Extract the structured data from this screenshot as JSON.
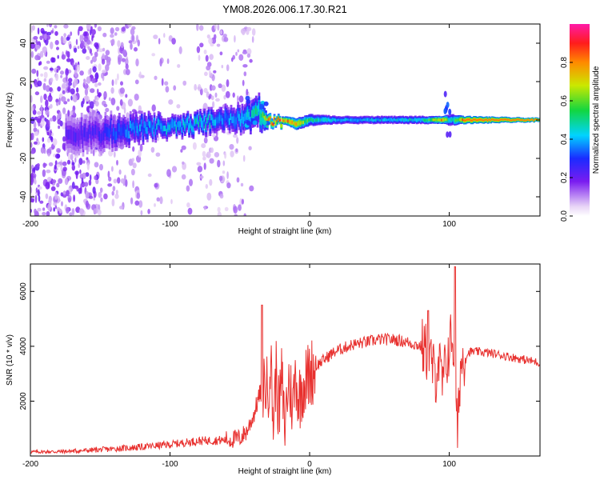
{
  "title": "YM08.2026.006.17.30.R21",
  "chart_data": [
    {
      "type": "heatmap",
      "name": "spectrogram",
      "xlabel": "Height of straight line (km)",
      "ylabel": "Frequency (Hz)",
      "xlim": [
        -200,
        165
      ],
      "ylim": [
        -50,
        50
      ],
      "xticks": [
        -200,
        -100,
        0,
        100
      ],
      "xtick_labels": [
        "-200",
        "-100",
        "0",
        "100"
      ],
      "yticks": [
        -40,
        -20,
        0,
        20,
        40
      ],
      "ytick_labels": [
        "-40",
        "-20",
        "0",
        "20",
        "40"
      ],
      "colorbar": {
        "label": "Normalized spectral amplitude",
        "range": [
          0,
          1
        ],
        "ticks": [
          0.0,
          0.2,
          0.4,
          0.6,
          0.8
        ],
        "tick_labels": [
          "0.0",
          "0.2",
          "0.4",
          "0.6",
          "0.8"
        ]
      },
      "ridge": {
        "x": [
          -200,
          -150,
          -130,
          -100,
          -80,
          -60,
          -45,
          -35,
          -30,
          -20,
          -10,
          0,
          20,
          50,
          80,
          95,
          100,
          110,
          165
        ],
        "center_hz": [
          -8,
          -7,
          -5,
          -3,
          -2,
          0,
          2,
          4,
          0,
          0,
          -2,
          0,
          0,
          0,
          0,
          0,
          0,
          0,
          0
        ],
        "halfwidth_hz": [
          10,
          9,
          7,
          5,
          5,
          6,
          7,
          8,
          3,
          2,
          3,
          3,
          2,
          2,
          2,
          2,
          3,
          2,
          1
        ],
        "peak_amplitude": [
          0.25,
          0.3,
          0.45,
          0.5,
          0.55,
          0.45,
          0.5,
          0.6,
          0.95,
          0.95,
          0.9,
          0.6,
          0.5,
          0.5,
          0.55,
          0.95,
          0.5,
          1.0,
          1.0
        ]
      }
    },
    {
      "type": "line",
      "name": "snr",
      "xlabel": "Height of straight line (km)",
      "ylabel": "SNR (10 * v/v)",
      "xlim": [
        -200,
        165
      ],
      "ylim": [
        0,
        7000
      ],
      "xticks": [
        -200,
        -100,
        0,
        100
      ],
      "xtick_labels": [
        "-200",
        "-100",
        "0",
        "100"
      ],
      "yticks": [
        2000,
        4000,
        6000
      ],
      "ytick_labels": [
        "2000",
        "4000",
        "6000"
      ],
      "color": "#e8312f",
      "series": [
        {
          "name": "SNR",
          "x": [
            -200,
            -180,
            -160,
            -140,
            -120,
            -100,
            -80,
            -60,
            -50,
            -45,
            -40,
            -35,
            -32,
            -30,
            -28,
            -26,
            -24,
            -22,
            -20,
            -18,
            -15,
            -12,
            -10,
            -8,
            -5,
            -2,
            0,
            5,
            10,
            15,
            20,
            25,
            30,
            40,
            50,
            60,
            70,
            80,
            85,
            88,
            90,
            92,
            95,
            98,
            100,
            102,
            104,
            105,
            106,
            107,
            108,
            110,
            115,
            120,
            130,
            140,
            150,
            165
          ],
          "y": [
            150,
            160,
            200,
            260,
            330,
            420,
            550,
            580,
            650,
            900,
            1500,
            2400,
            2700,
            2300,
            3600,
            1200,
            3100,
            1500,
            2900,
            1000,
            2800,
            1800,
            3100,
            2000,
            2600,
            2800,
            3000,
            3300,
            3500,
            3700,
            3850,
            3950,
            4050,
            4150,
            4250,
            4250,
            4150,
            4000,
            3700,
            3300,
            2800,
            3600,
            2600,
            3400,
            4000,
            4400,
            3500,
            1500,
            700,
            2200,
            3200,
            3600,
            3800,
            3800,
            3750,
            3650,
            3550,
            3400
          ]
        }
      ],
      "annotations": [
        {
          "x": -34,
          "y": 5500
        },
        {
          "x": 85,
          "y": 5300
        },
        {
          "x": 104,
          "y": 6900
        }
      ]
    }
  ]
}
